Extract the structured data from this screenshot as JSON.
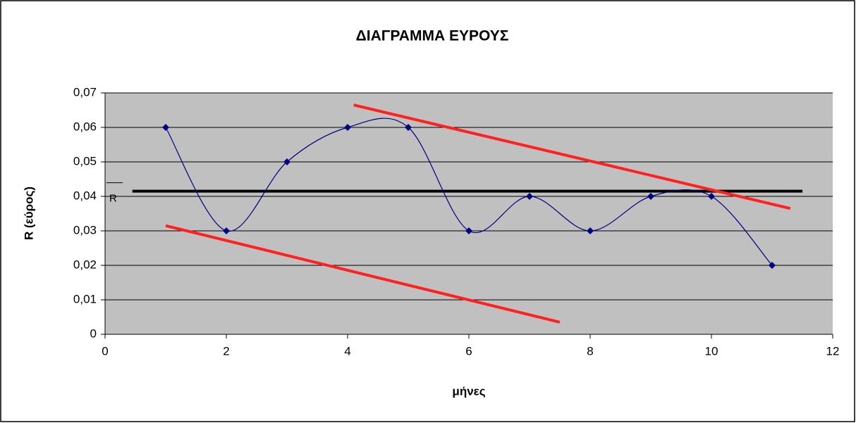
{
  "chart_data": {
    "type": "line",
    "title": "ΔΙΑΓΡΑΜΜΑ ΕΥΡΟΥΣ",
    "xlabel": "μήνες",
    "ylabel": "R (εύρος)",
    "x": [
      1,
      2,
      3,
      4,
      5,
      6,
      7,
      8,
      9,
      10,
      11
    ],
    "series": [
      {
        "name": "R",
        "color": "#000080",
        "values": [
          0.06,
          0.03,
          0.05,
          0.06,
          0.06,
          0.03,
          0.04,
          0.03,
          0.04,
          0.04,
          0.02
        ]
      }
    ],
    "smooth": true,
    "xlim": [
      0,
      12
    ],
    "xticks": [
      0,
      2,
      4,
      6,
      8,
      10,
      12
    ],
    "ylim": [
      0,
      0.07
    ],
    "yticks": [
      0,
      {
        "value": 0.01,
        "label": "0,01"
      },
      {
        "value": 0.02,
        "label": "0,02"
      },
      {
        "value": 0.03,
        "label": "0,03"
      },
      {
        "value": 0.04,
        "label": "0,04"
      },
      {
        "value": 0.05,
        "label": "0,05"
      },
      {
        "value": 0.06,
        "label": "0,06"
      },
      {
        "value": 0.07,
        "label": "0,07"
      }
    ],
    "grid": true,
    "plot_background": "#c0c0c0",
    "mean_label": "R",
    "lines": [
      {
        "x": [
          0.45,
          11.5
        ],
        "y": [
          0.0415,
          0.0415
        ],
        "color": "#000000"
      },
      {
        "x": [
          4.1,
          11.3
        ],
        "y": [
          0.0665,
          0.0365
        ],
        "color": "#ff2020"
      },
      {
        "x": [
          1,
          7.5
        ],
        "y": [
          0.0315,
          0.0035
        ],
        "color": "#ff2020"
      }
    ]
  }
}
